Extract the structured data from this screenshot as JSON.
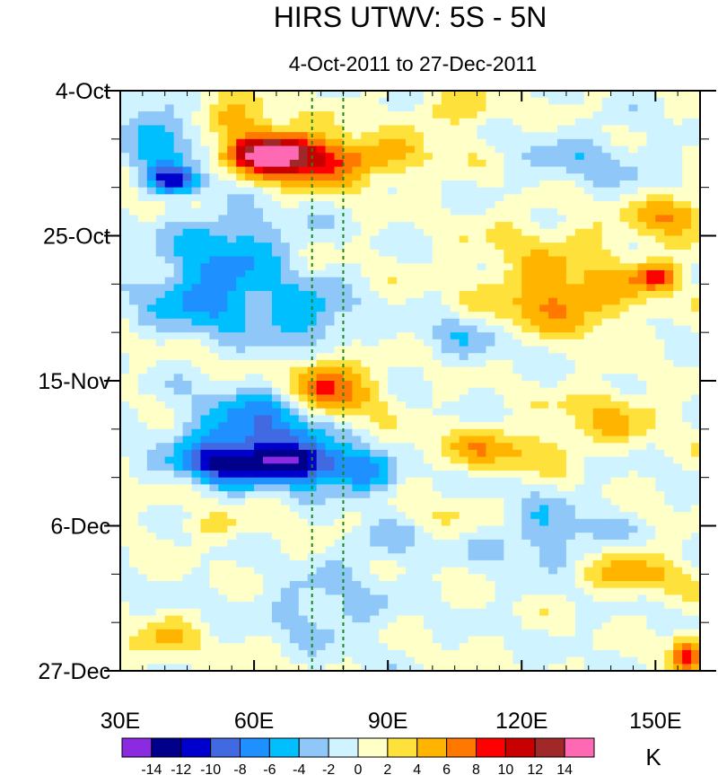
{
  "chart_data": {
    "type": "heatmap",
    "title": "HIRS UTWV: 5S - 5N",
    "subtitle": "4-Oct-2011 to 27-Dec-2011",
    "x_axis": {
      "range": [
        30,
        160
      ],
      "ticks": [
        30,
        60,
        90,
        120,
        150
      ],
      "tick_labels": [
        "30E",
        "60E",
        "90E",
        "120E",
        "150E"
      ]
    },
    "y_axis": {
      "range_days": [
        0,
        84
      ],
      "ticks_days": [
        0,
        21,
        42,
        63,
        84
      ],
      "tick_labels": [
        "4-Oct",
        "25-Oct",
        "15-Nov",
        "6-Dec",
        "27-Dec"
      ],
      "direction": "top-to-bottom"
    },
    "reference_lines_x": [
      73,
      80
    ],
    "colorbar": {
      "unit": "K",
      "levels": [
        -14,
        -12,
        -10,
        -8,
        -6,
        -4,
        -2,
        0,
        2,
        4,
        6,
        8,
        10,
        12,
        14
      ],
      "labels": [
        "-14",
        "-12",
        "-10",
        "-8",
        "-6",
        "-4",
        "-2",
        "0",
        "2",
        "4",
        "6",
        "8",
        "10",
        "12",
        "14"
      ],
      "colors": [
        "#8a2be2",
        "#00008b",
        "#0000cd",
        "#4169e1",
        "#1e90ff",
        "#00bfff",
        "#8fc8f8",
        "#d0f4ff",
        "#ffffc8",
        "#ffe13c",
        "#ffb400",
        "#ff7800",
        "#ff0000",
        "#c80000",
        "#a02828",
        "#ff69b4"
      ]
    },
    "features": [
      {
        "lon": 64,
        "day": 9,
        "value": 11,
        "rlon": 9,
        "rday": 2.5
      },
      {
        "lon": 70,
        "day": 10,
        "value": 8,
        "rlon": 14,
        "rday": 4
      },
      {
        "lon": 55,
        "day": 4,
        "value": 5,
        "rlon": 10,
        "rday": 3
      },
      {
        "lon": 88,
        "day": 10,
        "value": 4,
        "rlon": 14,
        "rday": 3
      },
      {
        "lon": 40,
        "day": 7,
        "value": -7,
        "rlon": 8,
        "rday": 4
      },
      {
        "lon": 42,
        "day": 13,
        "value": -10,
        "rlon": 6,
        "rday": 2
      },
      {
        "lon": 55,
        "day": 22,
        "value": -5,
        "rlon": 14,
        "rday": 5
      },
      {
        "lon": 50,
        "day": 30,
        "value": -7,
        "rlon": 14,
        "rday": 5
      },
      {
        "lon": 72,
        "day": 33,
        "value": -5,
        "rlon": 10,
        "rday": 5
      },
      {
        "lon": 60,
        "day": 49,
        "value": -8,
        "rlon": 14,
        "rday": 5
      },
      {
        "lon": 70,
        "day": 54,
        "value": -12,
        "rlon": 12,
        "rday": 3
      },
      {
        "lon": 52,
        "day": 54,
        "value": -9,
        "rlon": 10,
        "rday": 3
      },
      {
        "lon": 85,
        "day": 56,
        "value": -5,
        "rlon": 8,
        "rday": 3
      },
      {
        "lon": 75,
        "day": 42,
        "value": 7,
        "rlon": 7,
        "rday": 4
      },
      {
        "lon": 82,
        "day": 44,
        "value": 4,
        "rlon": 8,
        "rday": 4
      },
      {
        "lon": 130,
        "day": 24,
        "value": 3,
        "rlon": 22,
        "rday": 6
      },
      {
        "lon": 128,
        "day": 31,
        "value": 6,
        "rlon": 16,
        "rday": 4
      },
      {
        "lon": 150,
        "day": 27,
        "value": 8,
        "rlon": 5,
        "rday": 2
      },
      {
        "lon": 155,
        "day": 18,
        "value": 6,
        "rlon": 8,
        "rday": 3
      },
      {
        "lon": 115,
        "day": 52,
        "value": 5,
        "rlon": 14,
        "rday": 3
      },
      {
        "lon": 140,
        "day": 47,
        "value": 4,
        "rlon": 12,
        "rday": 4
      },
      {
        "lon": 105,
        "day": 3,
        "value": 3,
        "rlon": 12,
        "rday": 3
      },
      {
        "lon": 135,
        "day": 10,
        "value": -3,
        "rlon": 14,
        "rday": 4
      },
      {
        "lon": 125,
        "day": 64,
        "value": -4,
        "rlon": 14,
        "rday": 5
      },
      {
        "lon": 108,
        "day": 35,
        "value": -3,
        "rlon": 10,
        "rday": 4
      },
      {
        "lon": 75,
        "day": 75,
        "value": -3,
        "rlon": 14,
        "rday": 5
      },
      {
        "lon": 90,
        "day": 65,
        "value": -3,
        "rlon": 10,
        "rday": 4
      },
      {
        "lon": 40,
        "day": 80,
        "value": 4,
        "rlon": 8,
        "rday": 3
      },
      {
        "lon": 145,
        "day": 70,
        "value": 5,
        "rlon": 12,
        "rday": 3
      },
      {
        "lon": 157,
        "day": 82,
        "value": 8,
        "rlon": 4,
        "rday": 3
      },
      {
        "lon": 100,
        "day": 62,
        "value": 2,
        "rlon": 20,
        "rday": 3
      },
      {
        "lon": 50,
        "day": 63,
        "value": 2,
        "rlon": 10,
        "rday": 2
      }
    ]
  }
}
